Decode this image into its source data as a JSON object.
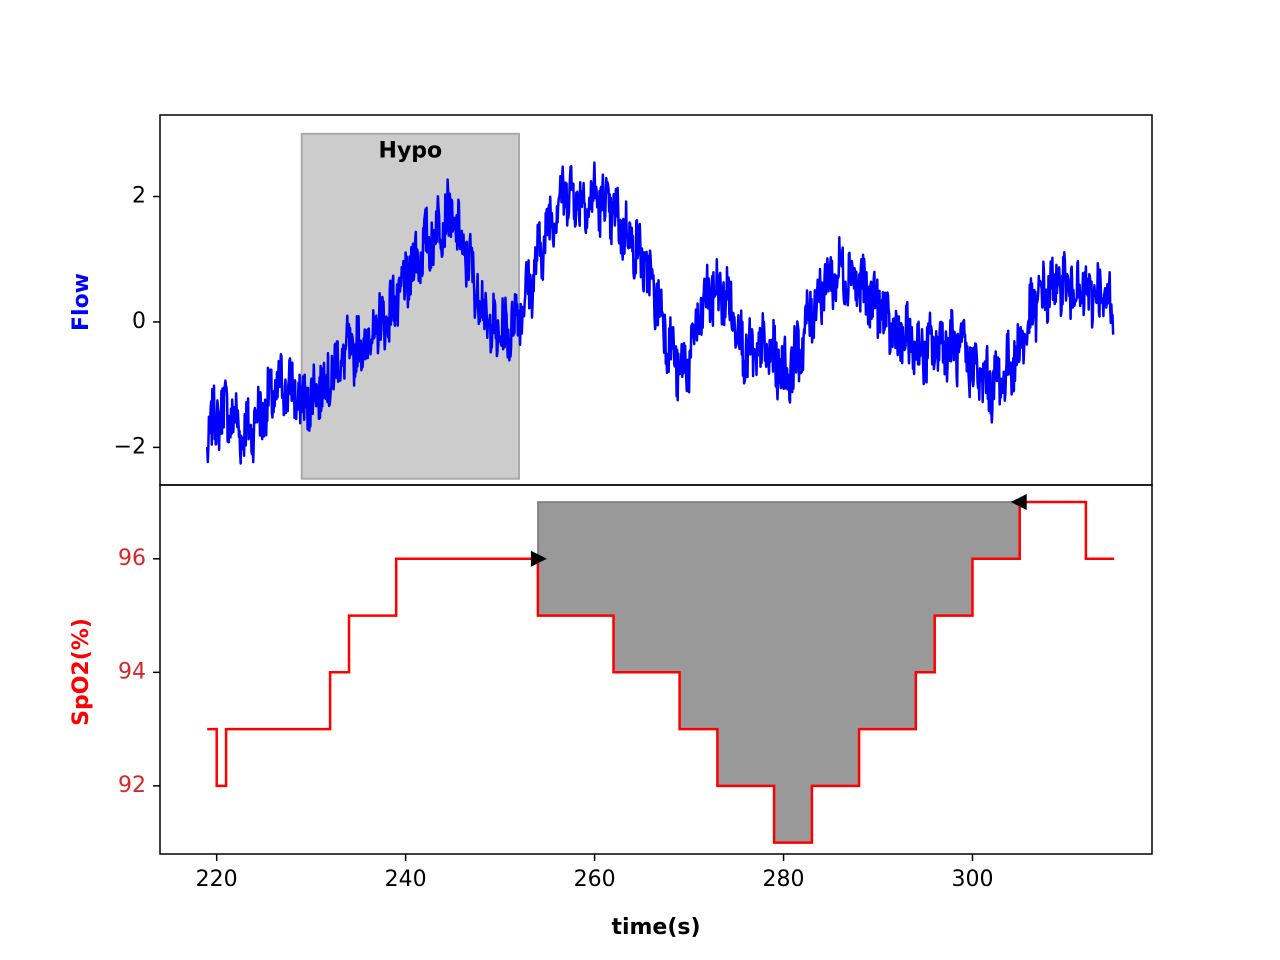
{
  "chart_data": [
    {
      "type": "line",
      "panel": "top",
      "xlabel": "",
      "ylabel": "Flow",
      "ylabel_color": "#0000ff",
      "xlim": [
        214,
        319
      ],
      "ylim": [
        -2.6,
        3.3
      ],
      "yticks": [
        -2,
        0,
        2
      ],
      "ytick_labels": [
        "−2",
        "0",
        "2"
      ],
      "grid": false,
      "series": [
        {
          "color": "#0000ff",
          "x": [
            219,
            220,
            221,
            222,
            223,
            224,
            225,
            226,
            227,
            228,
            229,
            230,
            231,
            232,
            233,
            234,
            235,
            236,
            237,
            238,
            239,
            240,
            241,
            242,
            243,
            244,
            245,
            246,
            247,
            248,
            249,
            250,
            251,
            252,
            253,
            254,
            255,
            256,
            257,
            258,
            259,
            260,
            261,
            262,
            263,
            264,
            265,
            266,
            267,
            268,
            269,
            270,
            271,
            272,
            273,
            274,
            275,
            276,
            277,
            278,
            279,
            280,
            281,
            282,
            283,
            284,
            285,
            286,
            287,
            288,
            289,
            290,
            291,
            292,
            293,
            294,
            295,
            296,
            297,
            298,
            299,
            300,
            301,
            302,
            303,
            304,
            305,
            306,
            307,
            308,
            309,
            310,
            311,
            312,
            313,
            314,
            315
          ],
          "y": [
            -1.9,
            -1.5,
            -1.4,
            -1.6,
            -1.8,
            -1.6,
            -1.4,
            -1.2,
            -1.0,
            -1.1,
            -1.3,
            -1.2,
            -1.0,
            -0.9,
            -0.6,
            -0.5,
            -0.4,
            -0.3,
            -0.1,
            0.1,
            0.3,
            0.6,
            1.0,
            1.2,
            1.4,
            1.7,
            1.6,
            1.2,
            0.8,
            0.3,
            -0.1,
            -0.2,
            -0.1,
            0.2,
            0.5,
            1.0,
            1.5,
            1.9,
            2.1,
            2.0,
            1.9,
            2.0,
            1.9,
            1.7,
            1.5,
            1.3,
            1.0,
            0.6,
            0.2,
            -0.4,
            -0.8,
            -0.6,
            0.0,
            0.4,
            0.5,
            0.4,
            0.0,
            -0.5,
            -0.6,
            -0.4,
            -0.6,
            -0.8,
            -0.7,
            -0.3,
            0.2,
            0.5,
            0.7,
            0.8,
            0.8,
            0.6,
            0.4,
            0.3,
            0.0,
            -0.2,
            -0.3,
            -0.4,
            -0.5,
            -0.4,
            -0.3,
            -0.4,
            -0.5,
            -0.7,
            -0.9,
            -1.0,
            -0.9,
            -0.7,
            -0.4,
            0.0,
            0.4,
            0.5,
            0.6,
            0.6,
            0.5,
            0.4,
            0.5,
            0.3,
            0.3
          ]
        }
      ],
      "shaded_region": {
        "x_start": 229,
        "x_end": 252,
        "y_start": -2.5,
        "y_end": 3.0,
        "color": "#cccccc"
      },
      "annotations": [
        {
          "text": "Hypo",
          "x": 240.5,
          "y": 2.75
        }
      ]
    },
    {
      "type": "line",
      "panel": "bottom",
      "step": true,
      "xlabel": "time(s)",
      "ylabel": "SpO2(%)",
      "ylabel_color": "#ff0000",
      "tick_label_color": "#d62728",
      "xlim": [
        214,
        319
      ],
      "ylim": [
        90.8,
        97.3
      ],
      "xticks": [
        220,
        240,
        260,
        280,
        300
      ],
      "xtick_labels": [
        "220",
        "240",
        "260",
        "280",
        "300"
      ],
      "yticks": [
        92,
        94,
        96
      ],
      "ytick_labels": [
        "92",
        "94",
        "96"
      ],
      "grid": false,
      "series": [
        {
          "color": "#ff0000",
          "x": [
            219,
            220,
            221,
            232,
            234,
            239,
            254,
            262,
            269,
            273,
            279,
            283,
            288,
            294,
            296,
            300,
            305,
            312,
            315
          ],
          "y": [
            93,
            92,
            93,
            94,
            95,
            96,
            95,
            94,
            93,
            92,
            91,
            92,
            93,
            94,
            95,
            96,
            97,
            96,
            96
          ]
        }
      ],
      "desaturation_fill": {
        "x_start": 254,
        "x_end": 305,
        "top": 97,
        "color": "#999999"
      },
      "markers": [
        {
          "x": 254,
          "y": 96,
          "shape": "triangle-right"
        },
        {
          "x": 305,
          "y": 97,
          "shape": "triangle-left"
        }
      ]
    }
  ]
}
